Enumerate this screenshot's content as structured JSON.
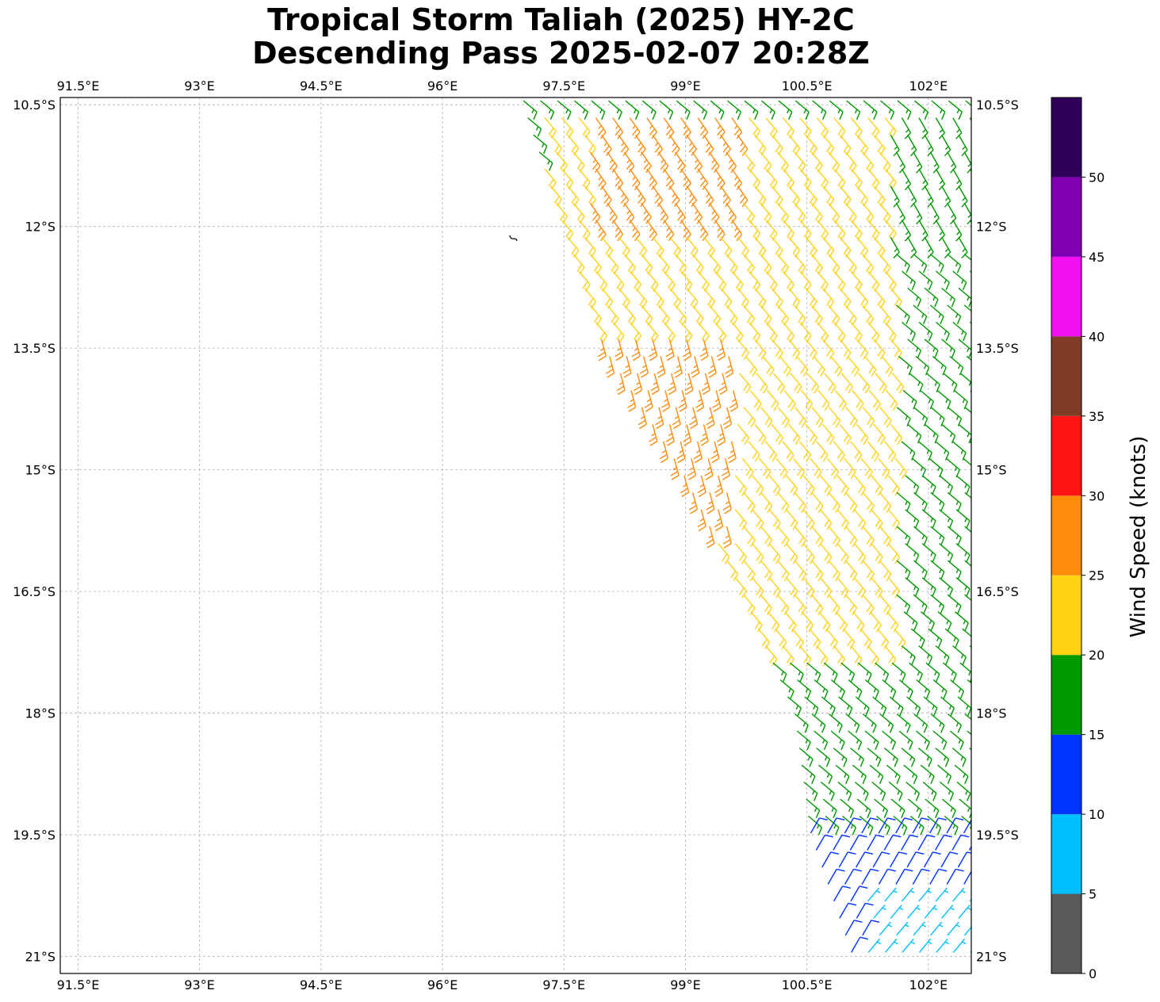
{
  "title": {
    "line1": "Tropical Storm Taliah (2025) HY-2C",
    "line2": "Descending Pass 2025-02-07 20:28Z"
  },
  "map": {
    "lon_range": [
      91.28,
      102.53
    ],
    "lat_range": [
      -21.21,
      -10.41
    ],
    "gridlines": true,
    "lon_ticks": [
      {
        "value": 91.5,
        "label": "91.5°E"
      },
      {
        "value": 93,
        "label": "93°E"
      },
      {
        "value": 94.5,
        "label": "94.5°E"
      },
      {
        "value": 96,
        "label": "96°E"
      },
      {
        "value": 97.5,
        "label": "97.5°E"
      },
      {
        "value": 99,
        "label": "99°E"
      },
      {
        "value": 100.5,
        "label": "100.5°E"
      },
      {
        "value": 102,
        "label": "102°E"
      }
    ],
    "lat_ticks": [
      {
        "value": -10.5,
        "label": "10.5°S"
      },
      {
        "value": -12,
        "label": "12°S"
      },
      {
        "value": -13.5,
        "label": "13.5°S"
      },
      {
        "value": -15,
        "label": "15°S"
      },
      {
        "value": -16.5,
        "label": "16.5°S"
      },
      {
        "value": -18,
        "label": "18°S"
      },
      {
        "value": -19.5,
        "label": "19.5°S"
      },
      {
        "value": -21,
        "label": "21°S"
      }
    ],
    "land_features": [
      {
        "name": "small-island",
        "lon": 96.87,
        "lat": -12.15
      }
    ]
  },
  "chart_data": {
    "type": "wind-barb-map",
    "variable": "Wind Speed (knots)",
    "swath_edges": [
      {
        "lat": -10.5,
        "west_lon": 97.0,
        "east_lon": 102.53
      },
      {
        "lat": -12.0,
        "west_lon": 97.5,
        "east_lon": 102.53
      },
      {
        "lat": -13.5,
        "west_lon": 98.0,
        "east_lon": 102.53
      },
      {
        "lat": -15.0,
        "west_lon": 98.95,
        "east_lon": 102.53
      },
      {
        "lat": -16.5,
        "west_lon": 99.7,
        "east_lon": 102.53
      },
      {
        "lat": -18.0,
        "west_lon": 100.35,
        "east_lon": 102.53
      },
      {
        "lat": -19.5,
        "west_lon": 100.55,
        "east_lon": 102.53
      },
      {
        "lat": -21.1,
        "west_lon": 101.1,
        "east_lon": 102.53
      }
    ],
    "wind_regions": [
      {
        "lat_min": -19.4,
        "lat_max": -10.5,
        "lon_min": 96.8,
        "lon_max": 102.6,
        "speed_kt": 17,
        "dir_from_deg": 130
      },
      {
        "lat_min": -17.2,
        "lat_max": -10.5,
        "lon_min": 97.2,
        "lon_max": 101.6,
        "speed_kt": 22,
        "dir_from_deg": 140
      },
      {
        "lat_min": -12.0,
        "lat_max": -10.5,
        "lon_min": 97.8,
        "lon_max": 99.7,
        "speed_kt": 27,
        "dir_from_deg": 145
      },
      {
        "lat_min": -15.8,
        "lat_max": -13.3,
        "lon_min": 97.9,
        "lon_max": 99.6,
        "speed_kt": 27,
        "dir_from_deg": 165
      },
      {
        "lat_min": -12.3,
        "lat_max": -10.6,
        "lon_min": 101.5,
        "lon_max": 102.6,
        "speed_kt": 17,
        "dir_from_deg": 150
      },
      {
        "lat_min": -21.2,
        "lat_max": -19.4,
        "lon_min": 100.5,
        "lon_max": 102.6,
        "speed_kt": 12,
        "dir_from_deg": 30
      },
      {
        "lat_min": -21.2,
        "lat_max": -20.3,
        "lon_min": 101.2,
        "lon_max": 102.6,
        "speed_kt": 8,
        "dir_from_deg": 40
      }
    ]
  },
  "colorbar": {
    "label": "Wind Speed (knots)",
    "bins": [
      {
        "min": 0,
        "max": 5,
        "color": "#595959"
      },
      {
        "min": 5,
        "max": 10,
        "color": "#00bfff"
      },
      {
        "min": 10,
        "max": 15,
        "color": "#0033ff"
      },
      {
        "min": 15,
        "max": 20,
        "color": "#009900"
      },
      {
        "min": 20,
        "max": 25,
        "color": "#ffd314"
      },
      {
        "min": 25,
        "max": 30,
        "color": "#ff8c0a"
      },
      {
        "min": 30,
        "max": 35,
        "color": "#ff1414"
      },
      {
        "min": 35,
        "max": 40,
        "color": "#7f3d28"
      },
      {
        "min": 40,
        "max": 45,
        "color": "#f00ff0"
      },
      {
        "min": 45,
        "max": 50,
        "color": "#7f00b3"
      },
      {
        "min": 50,
        "max": 55,
        "color": "#2d005a"
      }
    ],
    "tick_labels": [
      "0",
      "5",
      "10",
      "15",
      "20",
      "25",
      "30",
      "35",
      "40",
      "45",
      "50"
    ]
  }
}
